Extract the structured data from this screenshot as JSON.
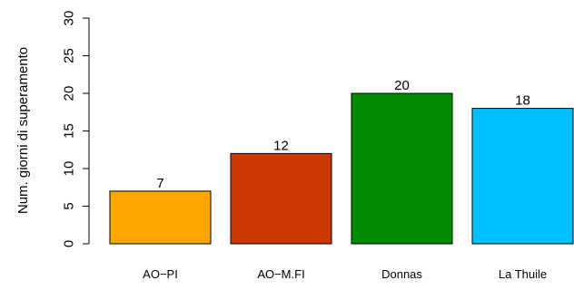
{
  "chart_data": {
    "type": "bar",
    "title": "",
    "xlabel": "",
    "ylabel": "Num. giorni di superamento",
    "categories": [
      "AO−PI",
      "AO−M.FI",
      "Donnas",
      "La Thuile"
    ],
    "values": [
      7,
      12,
      20,
      18
    ],
    "value_labels": [
      "7",
      "12",
      "20",
      "18"
    ],
    "colors": [
      "#FFA500",
      "#CD3700",
      "#008B00",
      "#00BFFF"
    ],
    "ylim": [
      0,
      30
    ],
    "yticks": [
      0,
      5,
      10,
      15,
      20,
      25,
      30
    ],
    "ytick_labels": [
      "0",
      "5",
      "10",
      "15",
      "20",
      "25",
      "30"
    ],
    "grid": false,
    "legend": "none"
  }
}
